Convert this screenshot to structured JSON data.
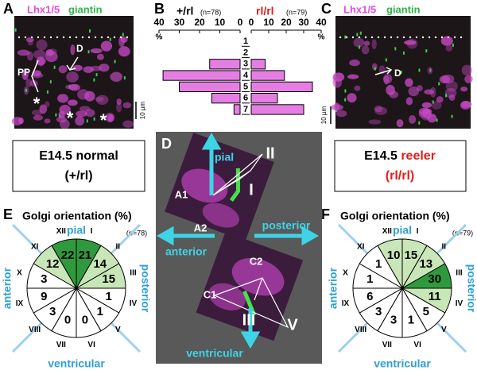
{
  "panel_a": {
    "label": "A",
    "stain_1": "Lhx1/5",
    "stain_2": "giantin",
    "arrow_label": "D",
    "zone_label": "PP",
    "asterisks": [
      "*",
      "*",
      "*"
    ],
    "scale_bar": "10 µm"
  },
  "chart_data": {
    "type": "bar",
    "panel_label": "B",
    "categories": [
      "1",
      "2",
      "3",
      "4",
      "5",
      "6",
      "7"
    ],
    "series": [
      {
        "name": "+/rl",
        "name_color": "#000000",
        "n_label": "(n=78)",
        "color": "#e57ee3",
        "values": [
          0,
          0,
          15,
          38,
          30,
          14,
          3
        ]
      },
      {
        "name": "rl/rl",
        "name_color": "#e0201c",
        "n_label": "(n=79)",
        "color": "#e57ee3",
        "values": [
          0,
          0,
          8,
          19,
          35,
          15,
          30
        ]
      }
    ],
    "xlim": [
      0,
      40
    ],
    "xticks": [
      0,
      10,
      20,
      30,
      40
    ],
    "x_axis_label": "%"
  },
  "panel_c": {
    "label": "C",
    "stain_1": "Lhx1/5",
    "stain_2": "giantin",
    "arrow_label": "D",
    "scale_bar": "10 µm"
  },
  "box_normal": {
    "line_1": "E14.5 normal",
    "line_2": "(+/rl)"
  },
  "box_reeler": {
    "line_1_a": "E14.5",
    "line_1_b": "reeler",
    "line_2": "(rl/rl)"
  },
  "panel_d": {
    "label": "D",
    "pial": "pial",
    "anterior": "anterior",
    "posterior": "posterior",
    "ventricular": "ventricular",
    "cells": [
      "A1",
      "A2",
      "C2",
      "C1"
    ],
    "sectors": [
      "II",
      "I",
      "III",
      "V"
    ]
  },
  "panel_e": {
    "label": "E",
    "title": "Golgi orientation (%)",
    "n_label": "(n=78)",
    "pial": "pial",
    "anterior": "anterior",
    "posterior": "posterior",
    "ventricular": "ventricular",
    "sectors": [
      {
        "numeral": "XII",
        "value": 22,
        "color": "#2f9a3d"
      },
      {
        "numeral": "I",
        "value": 21,
        "color": "#2f9a3d"
      },
      {
        "numeral": "II",
        "value": 14,
        "color": "#c8e6b8"
      },
      {
        "numeral": "III",
        "value": 15,
        "color": "#c8e6b8"
      },
      {
        "numeral": "IV",
        "value": 1,
        "color": "#ffffff"
      },
      {
        "numeral": "V",
        "value": 1,
        "color": "#ffffff"
      },
      {
        "numeral": "VI",
        "value": 0,
        "color": "#ffffff"
      },
      {
        "numeral": "VII",
        "value": 0,
        "color": "#ffffff"
      },
      {
        "numeral": "VIII",
        "value": 3,
        "color": "#ffffff"
      },
      {
        "numeral": "IX",
        "value": 9,
        "color": "#ffffff"
      },
      {
        "numeral": "X",
        "value": 3,
        "color": "#ffffff"
      },
      {
        "numeral": "XI",
        "value": 12,
        "color": "#c8e6b8"
      }
    ]
  },
  "panel_f": {
    "label": "F",
    "title": "Golgi orientation (%)",
    "n_label": "(n=79)",
    "pial": "pial",
    "anterior": "anterior",
    "posterior": "posterior",
    "ventricular": "ventricular",
    "sectors": [
      {
        "numeral": "XII",
        "value": 10,
        "color": "#c8e6b8"
      },
      {
        "numeral": "I",
        "value": 15,
        "color": "#c8e6b8"
      },
      {
        "numeral": "II",
        "value": 13,
        "color": "#c8e6b8"
      },
      {
        "numeral": "III",
        "value": 30,
        "color": "#2f9a3d"
      },
      {
        "numeral": "IV",
        "value": 11,
        "color": "#c8e6b8"
      },
      {
        "numeral": "V",
        "value": 5,
        "color": "#ffffff"
      },
      {
        "numeral": "VI",
        "value": 1,
        "color": "#ffffff"
      },
      {
        "numeral": "VII",
        "value": 3,
        "color": "#ffffff"
      },
      {
        "numeral": "VIII",
        "value": 3,
        "color": "#ffffff"
      },
      {
        "numeral": "IX",
        "value": 6,
        "color": "#ffffff"
      },
      {
        "numeral": "X",
        "value": 1,
        "color": "#ffffff"
      },
      {
        "numeral": "XI",
        "value": 1,
        "color": "#ffffff"
      }
    ]
  }
}
